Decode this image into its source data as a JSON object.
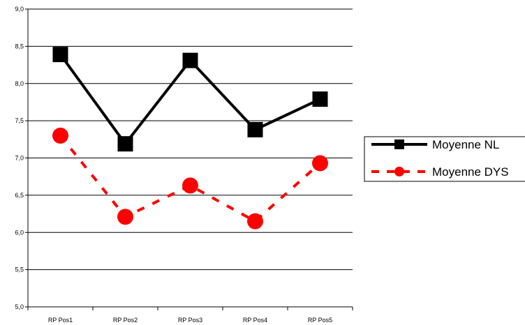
{
  "chart_data": {
    "type": "line",
    "categories": [
      "RP Pos1",
      "RP Pos2",
      "RP Pos3",
      "RP Pos4",
      "RP Pos5"
    ],
    "ylim": [
      5.0,
      9.0
    ],
    "y_ticks": [
      "5,0",
      "5,5",
      "6,0",
      "6,5",
      "7,0",
      "7,5",
      "8,0",
      "8,5",
      "9,0"
    ],
    "grid": "horizontal",
    "legend_position": "right",
    "series": [
      {
        "name": "Moyenne NL",
        "values": [
          8.39,
          7.19,
          8.31,
          7.38,
          7.79
        ],
        "color": "#000000",
        "line_style": "solid",
        "marker": "square"
      },
      {
        "name": "Moyenne DYS",
        "values": [
          7.3,
          6.21,
          6.63,
          6.15,
          6.93
        ],
        "color": "#ff0000",
        "line_style": "dashed",
        "marker": "circle"
      }
    ]
  }
}
